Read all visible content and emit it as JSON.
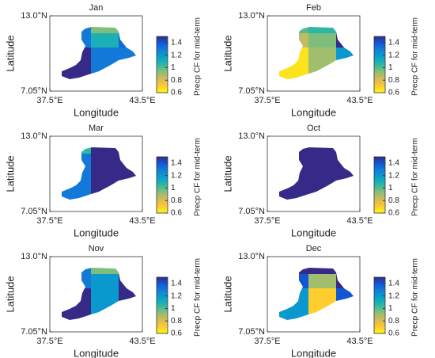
{
  "figure": {
    "xlabel": "Longitude",
    "ylabel": "Latitude",
    "colorbar_label": "Precp CF for mid-term",
    "xlim": [
      37.5,
      43.5
    ],
    "ylim": [
      7.05,
      13.0
    ],
    "xticks": [
      {
        "value": 37.5,
        "label": "37.5°E"
      },
      {
        "value": 43.5,
        "label": "43.5°E"
      }
    ],
    "yticks": [
      {
        "value": 7.05,
        "label": "7.05°N"
      },
      {
        "value": 13.0,
        "label": "13.0°N"
      }
    ],
    "clim": [
      0.6,
      1.5
    ],
    "cticks": [
      0.6,
      0.8,
      1,
      1.2,
      1.4
    ],
    "colormap": [
      "#f9fb0e",
      "#fec832",
      "#d1bb59",
      "#87bf77",
      "#2eb7a4",
      "#06a4ca",
      "#1481d6",
      "#0f5cdd",
      "#352a87"
    ],
    "panels": [
      {
        "title": "Jan",
        "values": [
          1.3,
          0.95,
          1.5,
          1.3,
          1.1,
          1.35,
          1.5,
          1.3,
          1.3
        ]
      },
      {
        "title": "Feb",
        "values": [
          1.0,
          1.05,
          1.5,
          0.85,
          0.95,
          1.5,
          0.65,
          0.9,
          1.2
        ]
      },
      {
        "title": "Mar",
        "values": [
          1.05,
          1.5,
          1.5,
          1.3,
          1.5,
          1.5,
          1.3,
          1.5,
          1.5
        ]
      },
      {
        "title": "Oct",
        "values": [
          1.5,
          1.5,
          1.5,
          1.5,
          1.5,
          1.5,
          1.5,
          1.5,
          1.5
        ]
      },
      {
        "title": "Nov",
        "values": [
          1.3,
          0.95,
          1.5,
          1.3,
          1.2,
          1.5,
          1.5,
          1.2,
          1.5
        ]
      },
      {
        "title": "Dec",
        "values": [
          1.5,
          1.5,
          1.5,
          1.4,
          0.9,
          1.5,
          1.2,
          0.7,
          1.4
        ]
      }
    ]
  }
}
